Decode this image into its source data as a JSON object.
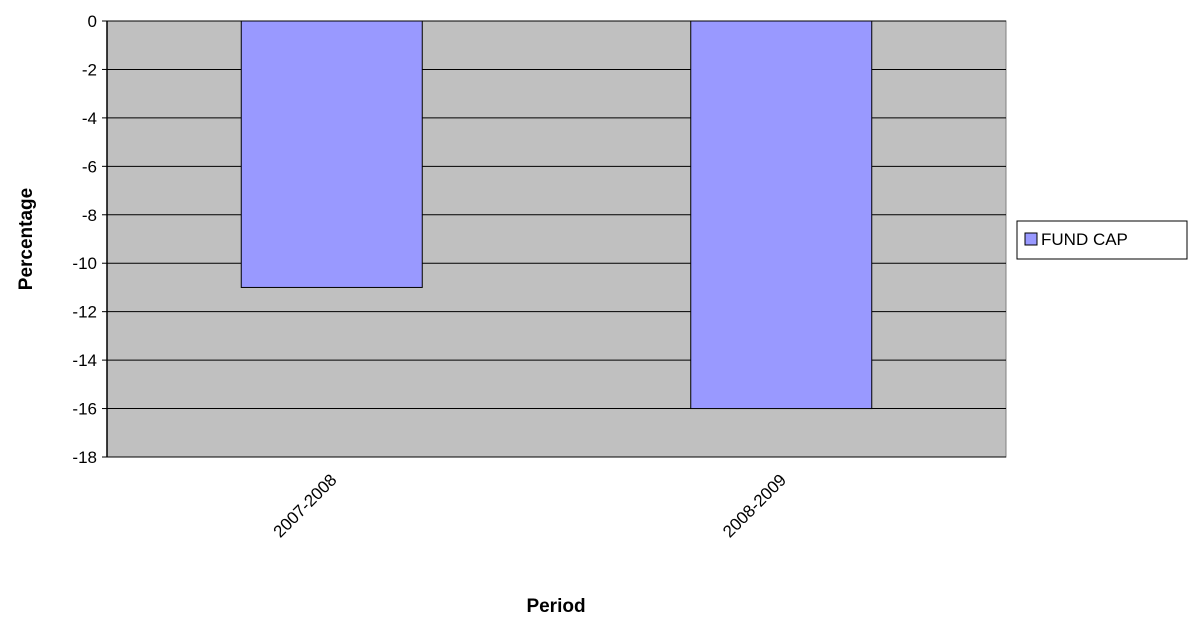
{
  "chart_data": {
    "type": "bar",
    "title": "",
    "xlabel": "Period",
    "ylabel": "Percentage",
    "categories": [
      "2007-2008",
      "2008-2009"
    ],
    "series": [
      {
        "name": "FUND CAP",
        "values": [
          -11,
          -16
        ]
      }
    ],
    "ylim": [
      -18,
      0
    ],
    "yticks": [
      "0",
      "-2",
      "-4",
      "-6",
      "-8",
      "-10",
      "-12",
      "-14",
      "-16",
      "-18"
    ],
    "grid": true,
    "legend_position": "right",
    "colors": {
      "plot_background": "#c0c0c0",
      "bar_fill": "#9999ff",
      "bar_stroke": "#000000",
      "gridline": "#000000"
    }
  }
}
